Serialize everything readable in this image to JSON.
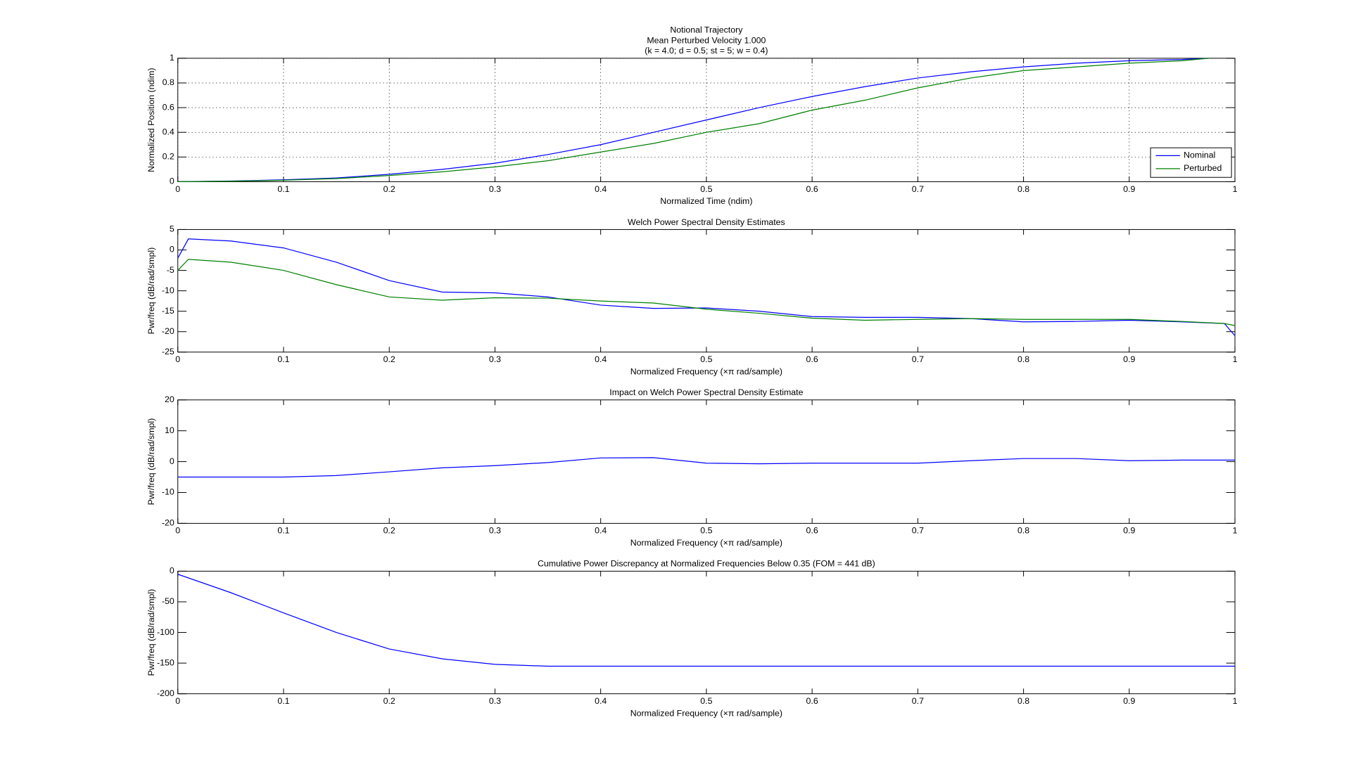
{
  "chart_data": [
    {
      "type": "line",
      "title": [
        "Notional Trajectory",
        "Mean Perturbed Velocity 1.000",
        "(k = 4.0; d = 0.5; st =  5; w = 0.4)"
      ],
      "x_label": "Normalized Time (ndim)",
      "y_label": "Normalized Position (ndim)",
      "x": [
        0,
        0.05,
        0.1,
        0.15,
        0.2,
        0.25,
        0.3,
        0.35,
        0.4,
        0.45,
        0.5,
        0.55,
        0.6,
        0.65,
        0.7,
        0.75,
        0.8,
        0.85,
        0.9,
        0.95,
        0.975
      ],
      "series": [
        {
          "name": "Nominal",
          "color": "#0000ff",
          "values": [
            0,
            0.005,
            0.015,
            0.03,
            0.06,
            0.1,
            0.15,
            0.22,
            0.3,
            0.4,
            0.5,
            0.6,
            0.69,
            0.77,
            0.84,
            0.89,
            0.93,
            0.96,
            0.98,
            0.99,
            1
          ]
        },
        {
          "name": "Perturbed",
          "color": "#008000",
          "values": [
            0,
            0.004,
            0.012,
            0.025,
            0.05,
            0.08,
            0.12,
            0.17,
            0.24,
            0.31,
            0.4,
            0.47,
            0.58,
            0.66,
            0.76,
            0.84,
            0.9,
            0.93,
            0.96,
            0.98,
            1
          ]
        }
      ],
      "xlim": [
        0,
        1
      ],
      "xticks": [
        0,
        0.1,
        0.2,
        0.3,
        0.4,
        0.5,
        0.6,
        0.7,
        0.8,
        0.9,
        1
      ],
      "ylim": [
        0,
        1
      ],
      "yticks": [
        0,
        0.2,
        0.4,
        0.6,
        0.8,
        1
      ],
      "grid": true,
      "legend": "lower-right"
    },
    {
      "type": "line",
      "title": [
        "Welch Power Spectral Density Estimates"
      ],
      "x_label": "Normalized Frequency (×π rad/sample)",
      "y_label": "Pwr/freq (dB/rad/smpl)",
      "x": [
        0,
        0.01,
        0.05,
        0.1,
        0.15,
        0.2,
        0.25,
        0.3,
        0.35,
        0.4,
        0.45,
        0.5,
        0.55,
        0.6,
        0.65,
        0.7,
        0.75,
        0.8,
        0.85,
        0.9,
        0.95,
        0.99,
        1
      ],
      "series": [
        {
          "name": "Nominal",
          "color": "#0000ff",
          "values": [
            -2,
            2.7,
            2.2,
            0.5,
            -3,
            -7.5,
            -10.3,
            -10.5,
            -11.5,
            -13.5,
            -14.3,
            -14.2,
            -15,
            -16.3,
            -16.5,
            -16.5,
            -16.8,
            -17.6,
            -17.5,
            -17.2,
            -17.6,
            -18,
            -21
          ]
        },
        {
          "name": "Perturbed",
          "color": "#008000",
          "values": [
            -5,
            -2.3,
            -3,
            -5,
            -8.5,
            -11.5,
            -12.3,
            -11.7,
            -11.8,
            -12.5,
            -13,
            -14.5,
            -15.5,
            -16.7,
            -17.2,
            -17,
            -16.8,
            -17,
            -17,
            -17,
            -17.5,
            -18,
            -18.5
          ]
        }
      ],
      "xlim": [
        0,
        1
      ],
      "xticks": [
        0,
        0.1,
        0.2,
        0.3,
        0.4,
        0.5,
        0.6,
        0.7,
        0.8,
        0.9,
        1
      ],
      "ylim": [
        -25,
        5
      ],
      "yticks": [
        -25,
        -20,
        -15,
        -10,
        -5,
        0,
        5
      ],
      "grid": false
    },
    {
      "type": "line",
      "title": [
        "Impact on Welch Power Spectral Density Estimate"
      ],
      "x_label": "Normalized Frequency (×π rad/sample)",
      "y_label": "Pwr/freq (dB/rad/smpl)",
      "x": [
        0,
        0.05,
        0.1,
        0.15,
        0.2,
        0.25,
        0.3,
        0.35,
        0.4,
        0.45,
        0.5,
        0.55,
        0.6,
        0.65,
        0.7,
        0.75,
        0.8,
        0.85,
        0.9,
        0.95,
        1
      ],
      "series": [
        {
          "color": "#0000ff",
          "values": [
            -5,
            -5,
            -5,
            -4.5,
            -3.3,
            -2,
            -1.3,
            -0.3,
            1.2,
            1.3,
            -0.5,
            -0.7,
            -0.5,
            -0.5,
            -0.5,
            0.3,
            1,
            1,
            0.3,
            0.5,
            0.5
          ]
        }
      ],
      "xlim": [
        0,
        1
      ],
      "xticks": [
        0,
        0.1,
        0.2,
        0.3,
        0.4,
        0.5,
        0.6,
        0.7,
        0.8,
        0.9,
        1
      ],
      "ylim": [
        -20,
        20
      ],
      "yticks": [
        -20,
        -10,
        0,
        10,
        20
      ],
      "grid": false
    },
    {
      "type": "line",
      "title": [
        "Cumulative Power Discrepancy at Normalized Frequencies Below 0.35 (FOM = 441 dB)"
      ],
      "x_label": "Normalized Frequency (×π rad/sample)",
      "y_label": "Pwr/freq (dB/rad/smpl)",
      "x": [
        0,
        0.05,
        0.1,
        0.15,
        0.2,
        0.25,
        0.3,
        0.35,
        0.4,
        0.5,
        0.6,
        0.7,
        0.8,
        0.9,
        1
      ],
      "series": [
        {
          "color": "#0000ff",
          "values": [
            -5,
            -35,
            -68,
            -100,
            -127,
            -143,
            -152,
            -155,
            -155,
            -155,
            -155,
            -155,
            -155,
            -155,
            -155
          ]
        }
      ],
      "xlim": [
        0,
        1
      ],
      "xticks": [
        0,
        0.1,
        0.2,
        0.3,
        0.4,
        0.5,
        0.6,
        0.7,
        0.8,
        0.9,
        1
      ],
      "ylim": [
        -200,
        0
      ],
      "yticks": [
        -200,
        -150,
        -100,
        -50,
        0
      ],
      "grid": false
    }
  ]
}
